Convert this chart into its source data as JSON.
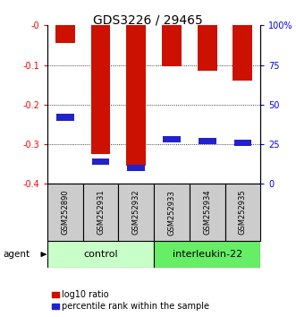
{
  "title": "GDS3226 / 29465",
  "samples": [
    "GSM252890",
    "GSM252931",
    "GSM252932",
    "GSM252933",
    "GSM252934",
    "GSM252935"
  ],
  "log10_ratio": [
    -0.045,
    -0.325,
    -0.355,
    -0.103,
    -0.115,
    -0.14
  ],
  "percentile_rank": [
    42,
    14,
    10,
    28,
    27,
    26
  ],
  "ylim_left": [
    -0.4,
    0.0
  ],
  "ylim_right": [
    0,
    100
  ],
  "yticks_left": [
    0.0,
    -0.1,
    -0.2,
    -0.3,
    -0.4
  ],
  "yticks_right": [
    100,
    75,
    50,
    25,
    0
  ],
  "ytick_labels_left": [
    "-0",
    "-0.1",
    "-0.2",
    "-0.3",
    "-0.4"
  ],
  "ytick_labels_right": [
    "100%",
    "75",
    "50",
    "25",
    "0"
  ],
  "groups": [
    {
      "label": "control",
      "indices": [
        0,
        1,
        2
      ],
      "color": "#c8ffc8"
    },
    {
      "label": "interleukin-22",
      "indices": [
        3,
        4,
        5
      ],
      "color": "#66ee66"
    }
  ],
  "bar_color_red": "#cc1100",
  "bar_color_blue": "#2222cc",
  "bar_width": 0.55,
  "legend_red_label": "log10 ratio",
  "legend_blue_label": "percentile rank within the sample",
  "agent_label": "agent",
  "label_area_bg": "#cccccc",
  "title_fontsize": 10,
  "tick_fontsize": 7,
  "sample_fontsize": 6,
  "group_label_fontsize": 8,
  "legend_fontsize": 7
}
